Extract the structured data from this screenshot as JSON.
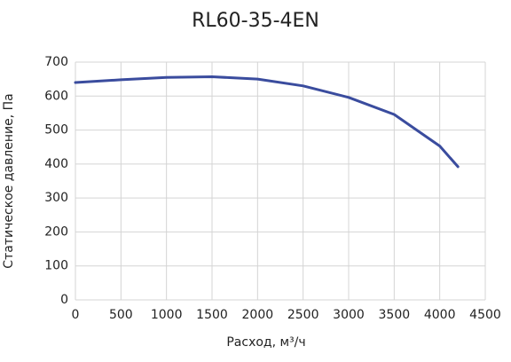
{
  "chart_data": {
    "type": "line",
    "title": "RL60-35-4EN",
    "x_label": "Расход, м³/ч",
    "y_label": "Статическое давление, Па",
    "x": [
      0,
      500,
      1000,
      1500,
      2000,
      2500,
      3000,
      3500,
      4000,
      4200
    ],
    "series": [
      {
        "name": "RL60-35-4EN",
        "color": "#3a4c9e",
        "values": [
          640,
          648,
          655,
          657,
          650,
          630,
          596,
          546,
          453,
          392
        ]
      }
    ],
    "xlim": [
      0,
      4500
    ],
    "xticks": [
      0,
      500,
      1000,
      1500,
      2000,
      2500,
      3000,
      3500,
      4000,
      4500
    ],
    "ylim": [
      0,
      700
    ],
    "yticks": [
      0,
      100,
      200,
      300,
      400,
      500,
      600,
      700
    ],
    "grid": true
  }
}
